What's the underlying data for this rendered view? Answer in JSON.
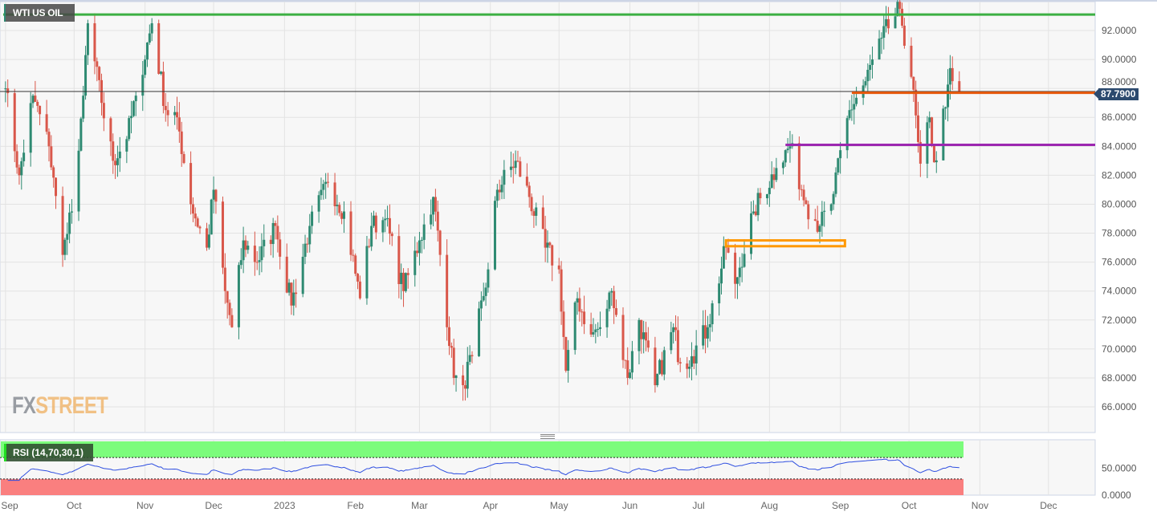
{
  "header": {
    "title": "WTI US OIL",
    "logo": "FXSTREET",
    "current_price_label": "87.7900"
  },
  "rsi": {
    "label": "RSI (14,70,30,1)",
    "upper": 70,
    "lower": 30,
    "ticks": [
      "50.0000",
      "0.0000"
    ],
    "upper_color": "#7cfc7c",
    "lower_color": "#fa7f7f",
    "line_color": "#2f4fe0"
  },
  "colors": {
    "up": "#2e8a72",
    "down": "#d9574a",
    "resistance": "#3cb043",
    "orange_line": "#e8590c",
    "purple_line": "#9c27b0",
    "zone": "#ff9800",
    "price_line": "#2c4a6e"
  },
  "chart_data": {
    "type": "candlestick",
    "title": "WTI US OIL",
    "ylim": [
      64.5,
      93.9
    ],
    "y_ticks": [
      "92.0000",
      "90.0000",
      "88.0000",
      "86.0000",
      "84.0000",
      "82.0000",
      "80.0000",
      "78.0000",
      "76.0000",
      "74.0000",
      "72.0000",
      "70.0000",
      "68.0000",
      "66.0000"
    ],
    "x_ticks": [
      {
        "label": "Sep",
        "date": "2022-09-01"
      },
      {
        "label": "Oct",
        "date": "2022-10-01"
      },
      {
        "label": "Nov",
        "date": "2022-11-01"
      },
      {
        "label": "Dec",
        "date": "2022-12-01"
      },
      {
        "label": "2023",
        "date": "2023-01-01"
      },
      {
        "label": "Feb",
        "date": "2023-02-01"
      },
      {
        "label": "Mar",
        "date": "2023-03-01"
      },
      {
        "label": "Apr",
        "date": "2023-04-01"
      },
      {
        "label": "May",
        "date": "2023-05-01"
      },
      {
        "label": "Jun",
        "date": "2023-06-01"
      },
      {
        "label": "Jul",
        "date": "2023-07-01"
      },
      {
        "label": "Aug",
        "date": "2023-08-01"
      },
      {
        "label": "Sep",
        "date": "2023-09-01"
      },
      {
        "label": "Oct",
        "date": "2023-10-01"
      },
      {
        "label": "Nov",
        "date": "2023-11-01"
      },
      {
        "label": "Dec",
        "date": "2023-12-01"
      }
    ],
    "xlim": [
      "2022-08-31",
      "2023-12-20"
    ],
    "close_path": [
      [
        "2022-09-01",
        88
      ],
      [
        "2022-09-07",
        82
      ],
      [
        "2022-09-13",
        87.5
      ],
      [
        "2022-09-20",
        84
      ],
      [
        "2022-09-26",
        76.5
      ],
      [
        "2022-09-30",
        79.5
      ],
      [
        "2022-10-05",
        87.5
      ],
      [
        "2022-10-07",
        92.5
      ],
      [
        "2022-10-13",
        87
      ],
      [
        "2022-10-18",
        83
      ],
      [
        "2022-10-24",
        84.5
      ],
      [
        "2022-10-28",
        87.5
      ],
      [
        "2022-11-04",
        92.5
      ],
      [
        "2022-11-10",
        86.5
      ],
      [
        "2022-11-15",
        86
      ],
      [
        "2022-11-21",
        80
      ],
      [
        "2022-11-28",
        77
      ],
      [
        "2022-12-01",
        81
      ],
      [
        "2022-12-06",
        74
      ],
      [
        "2022-12-09",
        71.5
      ],
      [
        "2022-12-14",
        77.5
      ],
      [
        "2022-12-20",
        76
      ],
      [
        "2022-12-28",
        78.5
      ],
      [
        "2023-01-04",
        73
      ],
      [
        "2023-01-12",
        78.5
      ],
      [
        "2023-01-20",
        81.5
      ],
      [
        "2023-01-27",
        79.5
      ],
      [
        "2023-02-03",
        73.5
      ],
      [
        "2023-02-08",
        78.5
      ],
      [
        "2023-02-14",
        79
      ],
      [
        "2023-02-22",
        74
      ],
      [
        "2023-03-01",
        77.5
      ],
      [
        "2023-03-07",
        80.5
      ],
      [
        "2023-03-10",
        76.5
      ],
      [
        "2023-03-16",
        68
      ],
      [
        "2023-03-20",
        67.5
      ],
      [
        "2023-03-24",
        69.5
      ],
      [
        "2023-03-31",
        75.5
      ],
      [
        "2023-04-04",
        81
      ],
      [
        "2023-04-12",
        83
      ],
      [
        "2023-04-18",
        80.5
      ],
      [
        "2023-04-25",
        77
      ],
      [
        "2023-05-01",
        75.5
      ],
      [
        "2023-05-04",
        68.5
      ],
      [
        "2023-05-09",
        73.5
      ],
      [
        "2023-05-15",
        71
      ],
      [
        "2023-05-19",
        71.5
      ],
      [
        "2023-05-24",
        74
      ],
      [
        "2023-05-31",
        68
      ],
      [
        "2023-06-05",
        72
      ],
      [
        "2023-06-12",
        67.5
      ],
      [
        "2023-06-20",
        71.5
      ],
      [
        "2023-06-23",
        69
      ],
      [
        "2023-06-28",
        69.5
      ],
      [
        "2023-07-05",
        71.5
      ],
      [
        "2023-07-13",
        77
      ],
      [
        "2023-07-17",
        74.5
      ],
      [
        "2023-07-25",
        79.5
      ],
      [
        "2023-08-04",
        82.5
      ],
      [
        "2023-08-10",
        84
      ],
      [
        "2023-08-17",
        80
      ],
      [
        "2023-08-23",
        78.5
      ],
      [
        "2023-08-28",
        80
      ],
      [
        "2023-09-05",
        86.5
      ],
      [
        "2023-09-12",
        88.5
      ],
      [
        "2023-09-19",
        91.5
      ],
      [
        "2023-09-27",
        93.5
      ],
      [
        "2023-10-02",
        88.8
      ],
      [
        "2023-10-05",
        84.3
      ],
      [
        "2023-10-06",
        82.8
      ],
      [
        "2023-10-10",
        86
      ],
      [
        "2023-10-12",
        82.9
      ],
      [
        "2023-10-17",
        86.7
      ],
      [
        "2023-10-19",
        89.4
      ],
      [
        "2023-10-20",
        88.5
      ],
      [
        "2023-10-23",
        87.79
      ]
    ],
    "last_price": 87.79,
    "annotations": [
      {
        "type": "hline",
        "price": 93.1,
        "from": "2022-08-31",
        "color": "#3cb043"
      },
      {
        "type": "hline",
        "price": 87.7,
        "from": "2023-09-06",
        "color": "#e8590c"
      },
      {
        "type": "hline",
        "price": 84.1,
        "from": "2023-08-08",
        "color": "#9c27b0"
      },
      {
        "type": "zone",
        "price_low": 77.1,
        "price_high": 77.5,
        "from": "2023-07-13",
        "to": "2023-09-03",
        "color": "#ff9800"
      }
    ],
    "grid": true
  }
}
